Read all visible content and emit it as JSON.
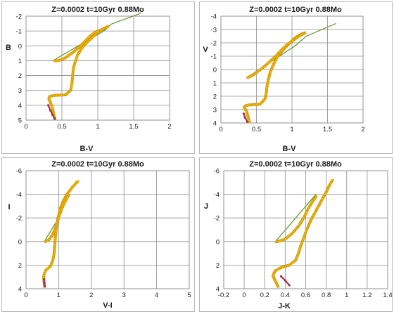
{
  "chart_data": [
    {
      "type": "scatter",
      "title": "Z=0.0002  t=10Gyr  0.88Mo",
      "xlabel": "B-V",
      "ylabel": "B",
      "xlim": [
        0,
        2
      ],
      "ylim": [
        5,
        -2
      ],
      "y_inverted": true,
      "grid": true,
      "xticks": [
        "0",
        "0.5",
        "1",
        "1.5",
        "2"
      ],
      "yticks": [
        "-2",
        "-1",
        "0",
        "1",
        "2",
        "3",
        "4",
        "5"
      ],
      "colors": {
        "track": "#f2b705",
        "track_edge": "#b88400",
        "connector": "#6a9a3c",
        "ms_segment": "#a0304a"
      },
      "series": [
        {
          "role": "track",
          "x": [
            0.4,
            0.37,
            0.36,
            0.33,
            0.32,
            0.32,
            0.33,
            0.4,
            0.55,
            0.62,
            0.64,
            0.65,
            0.66,
            0.69,
            0.72,
            0.77,
            0.84,
            0.93,
            1.02,
            1.1,
            1.14
          ],
          "y": [
            4.9,
            4.2,
            4.05,
            3.7,
            3.6,
            3.5,
            3.4,
            3.33,
            3.3,
            3.0,
            2.5,
            2.0,
            1.5,
            1.0,
            0.6,
            0.2,
            -0.2,
            -0.6,
            -1.0,
            -1.2,
            -1.3
          ]
        },
        {
          "role": "track",
          "x": [
            1.14,
            1.1,
            1.03,
            0.96,
            0.89,
            0.83,
            0.75,
            0.65,
            0.55,
            0.48,
            0.43,
            0.4,
            0.38
          ],
          "y": [
            -1.3,
            -1.2,
            -1.05,
            -0.9,
            -0.65,
            -0.35,
            0.05,
            0.45,
            0.8,
            0.95,
            1.0,
            1.0,
            0.98
          ]
        },
        {
          "role": "connector",
          "x": [
            0.38,
            1.1,
            1.18,
            1.6
          ],
          "y": [
            0.98,
            -1.05,
            -1.45,
            -2.2
          ]
        },
        {
          "role": "ms_segment",
          "x": [
            0.31,
            0.34,
            0.37,
            0.4
          ],
          "y": [
            4.0,
            4.35,
            4.65,
            4.9
          ]
        }
      ]
    },
    {
      "type": "scatter",
      "title": "Z=0.0002  t=10Gyr  0.88Mo",
      "xlabel": "B-V",
      "ylabel": "V",
      "xlim": [
        0,
        2
      ],
      "ylim": [
        4,
        -4
      ],
      "y_inverted": true,
      "grid": true,
      "xticks": [
        "0",
        "0.5",
        "1",
        "1.5",
        "2"
      ],
      "yticks": [
        "-4",
        "-3",
        "-2",
        "-1",
        "0",
        "1",
        "2",
        "3",
        "4"
      ],
      "colors": {
        "track": "#f2b705",
        "track_edge": "#b88400",
        "connector": "#6a9a3c",
        "ms_segment": "#a0304a"
      },
      "series": [
        {
          "role": "track",
          "x": [
            0.4,
            0.37,
            0.36,
            0.33,
            0.33,
            0.35,
            0.4,
            0.55,
            0.62,
            0.64,
            0.65,
            0.67,
            0.7,
            0.75,
            0.8,
            0.88,
            0.97,
            1.05,
            1.13,
            1.18
          ],
          "y": [
            3.9,
            3.3,
            3.1,
            2.9,
            2.8,
            2.7,
            2.65,
            2.6,
            2.2,
            1.7,
            1.2,
            0.7,
            0.1,
            -0.5,
            -1.0,
            -1.5,
            -2.0,
            -2.4,
            -2.65,
            -2.75
          ]
        },
        {
          "role": "track",
          "x": [
            1.18,
            1.1,
            1.02,
            0.94,
            0.86,
            0.77,
            0.67,
            0.57,
            0.48,
            0.42,
            0.38,
            0.36
          ],
          "y": [
            -2.75,
            -2.5,
            -2.2,
            -1.9,
            -1.5,
            -1.0,
            -0.5,
            -0.05,
            0.3,
            0.5,
            0.6,
            0.62
          ]
        },
        {
          "role": "connector",
          "x": [
            0.36,
            1.05,
            1.2,
            1.62
          ],
          "y": [
            0.62,
            -1.8,
            -2.5,
            -3.45
          ]
        },
        {
          "role": "ms_segment",
          "x": [
            0.32,
            0.34,
            0.37
          ],
          "y": [
            3.3,
            3.6,
            3.9
          ]
        }
      ]
    },
    {
      "type": "scatter",
      "title": "Z=0.0002  t=10Gyr  0.88Mo",
      "xlabel": "V-I",
      "ylabel": "I",
      "xlim": [
        0,
        5
      ],
      "ylim": [
        4,
        -6
      ],
      "y_inverted": true,
      "grid": true,
      "xticks": [
        "0",
        "1",
        "2",
        "3",
        "4",
        "5"
      ],
      "yticks": [
        "-6",
        "-4",
        "-2",
        "0",
        "2",
        "4"
      ],
      "colors": {
        "track": "#f2b705",
        "track_edge": "#b88400",
        "connector": "#6a9a3c",
        "ms_segment": "#a0304a"
      },
      "series": [
        {
          "role": "track",
          "x": [
            0.57,
            0.55,
            0.54,
            0.56,
            0.62,
            0.75,
            0.82,
            0.86,
            0.88,
            0.9,
            0.93,
            0.98,
            1.05,
            1.15,
            1.28,
            1.42,
            1.55,
            1.62
          ],
          "y": [
            3.8,
            3.4,
            3.0,
            2.7,
            2.4,
            2.1,
            1.6,
            1.0,
            0.3,
            -0.4,
            -1.2,
            -2.0,
            -2.8,
            -3.5,
            -4.1,
            -4.6,
            -5.0,
            -5.15
          ]
        },
        {
          "role": "track",
          "x": [
            1.3,
            1.2,
            1.1,
            1.02,
            0.95,
            0.88,
            0.8,
            0.7,
            0.6,
            0.55
          ],
          "y": [
            -3.9,
            -3.4,
            -2.8,
            -2.2,
            -1.6,
            -1.0,
            -0.5,
            -0.15,
            0.0,
            0.05
          ]
        },
        {
          "role": "connector",
          "x": [
            0.55,
            1.0,
            1.3
          ],
          "y": [
            0.05,
            -2.0,
            -4.0
          ]
        },
        {
          "role": "ms_segment",
          "x": [
            0.55,
            0.56,
            0.57
          ],
          "y": [
            3.2,
            3.5,
            3.8
          ]
        }
      ]
    },
    {
      "type": "scatter",
      "title": "Z=0.0002  t=10Gyr  0.88Mo",
      "xlabel": "J-K",
      "ylabel": "J",
      "xlim": [
        -0.2,
        1.4
      ],
      "ylim": [
        4,
        -6
      ],
      "y_inverted": true,
      "grid": true,
      "xticks": [
        "-0.2",
        "0",
        "0.2",
        "0.4",
        "0.6",
        "0.8",
        "1",
        "1.2",
        "1.4"
      ],
      "yticks": [
        "-6",
        "-4",
        "-2",
        "0",
        "2",
        "4"
      ],
      "colors": {
        "track": "#f2b705",
        "track_edge": "#b88400",
        "connector": "#6a9a3c",
        "ms_segment": "#a0304a"
      },
      "series": [
        {
          "role": "track",
          "x": [
            0.33,
            0.3,
            0.28,
            0.3,
            0.36,
            0.44,
            0.5,
            0.53,
            0.55,
            0.58,
            0.61,
            0.65,
            0.7,
            0.75,
            0.8,
            0.84,
            0.87
          ],
          "y": [
            3.8,
            3.3,
            2.9,
            2.5,
            2.2,
            2.0,
            1.6,
            1.0,
            0.4,
            -0.3,
            -1.0,
            -1.8,
            -2.6,
            -3.4,
            -4.2,
            -4.9,
            -5.3
          ]
        },
        {
          "role": "track",
          "x": [
            0.7,
            0.66,
            0.62,
            0.58,
            0.53,
            0.47,
            0.4,
            0.33,
            0.3
          ],
          "y": [
            -3.8,
            -3.3,
            -2.7,
            -2.0,
            -1.3,
            -0.7,
            -0.2,
            0.0,
            0.05
          ]
        },
        {
          "role": "connector",
          "x": [
            0.3,
            0.7
          ],
          "y": [
            0.05,
            -4.0
          ]
        },
        {
          "role": "ms_segment",
          "x": [
            0.36,
            0.4,
            0.44
          ],
          "y": [
            2.95,
            3.3,
            3.7
          ]
        }
      ]
    }
  ]
}
